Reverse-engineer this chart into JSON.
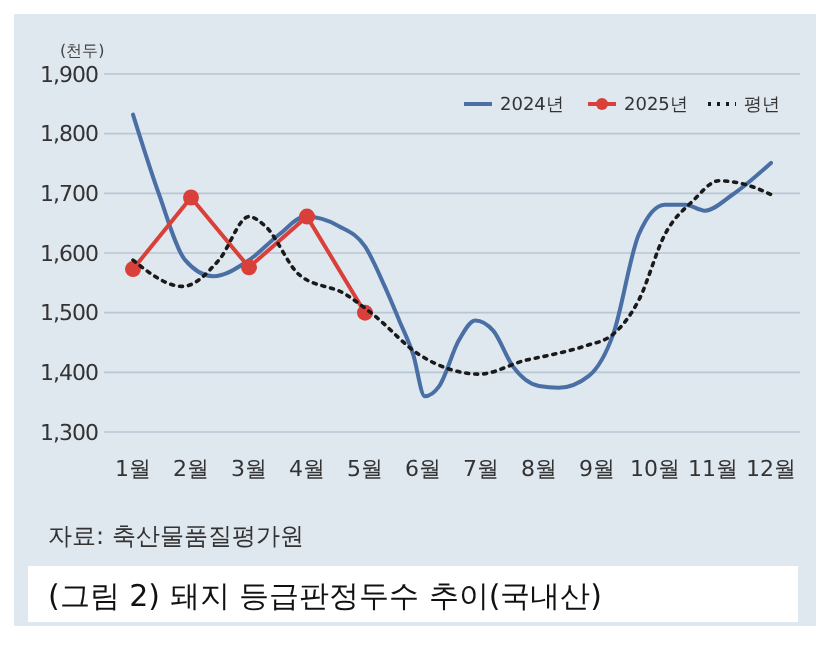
{
  "chart_data": {
    "type": "line",
    "title": "(그림 2) 돼지 등급판정두수 추이(국내산)",
    "ylabel": "(천두)",
    "annotations": [
      "자료: 축산물품질평가원"
    ],
    "xlim": [
      0.5,
      12.5
    ],
    "xticks": [
      {
        "value": 1,
        "label": "1월"
      },
      {
        "value": 2,
        "label": "2월"
      },
      {
        "value": 3,
        "label": "3월"
      },
      {
        "value": 4,
        "label": "4월"
      },
      {
        "value": 5,
        "label": "5월"
      },
      {
        "value": 6,
        "label": "6월"
      },
      {
        "value": 7,
        "label": "7월"
      },
      {
        "value": 8,
        "label": "8월"
      },
      {
        "value": 9,
        "label": "9월"
      },
      {
        "value": 10,
        "label": "10월"
      },
      {
        "value": 11,
        "label": "11월"
      },
      {
        "value": 12,
        "label": "12월"
      }
    ],
    "ylim": [
      1300,
      1900
    ],
    "yticks": [
      {
        "value": 1300,
        "label": "1,300"
      },
      {
        "value": 1400,
        "label": "1,400"
      },
      {
        "value": 1500,
        "label": "1,500"
      },
      {
        "value": 1600,
        "label": "1,600"
      },
      {
        "value": 1700,
        "label": "1,700"
      },
      {
        "value": 1800,
        "label": "1,800"
      },
      {
        "value": 1900,
        "label": "1,900"
      }
    ],
    "grid": "y",
    "legend": "top right",
    "series": [
      {
        "name": "2024년",
        "color": "#4a6fa5",
        "line_style": "solid",
        "marker": "none",
        "x": [
          1,
          1.45,
          1.9,
          2.38,
          3,
          3.52,
          3.97,
          4.55,
          5,
          5.34,
          5.59,
          5.83,
          6.03,
          6.28,
          6.62,
          6.9,
          7.21,
          7.55,
          8,
          8.34,
          8.86,
          9.28,
          9.72,
          10.17,
          10.52,
          10.86,
          11.34,
          12
        ],
        "values": [
          1832,
          1698,
          1588,
          1561,
          1588,
          1631,
          1661,
          1645,
          1611,
          1544,
          1487,
          1430,
          1360,
          1377,
          1454,
          1487,
          1470,
          1410,
          1377,
          1374,
          1394,
          1464,
          1631,
          1681,
          1681,
          1671,
          1698,
          1751
        ]
      },
      {
        "name": "2025년",
        "color": "#d9403a",
        "line_style": "solid",
        "marker": "circle",
        "x": [
          1,
          2,
          3,
          4,
          5
        ],
        "values": [
          1573,
          1693,
          1576,
          1661,
          1500
        ]
      },
      {
        "name": "평년",
        "color": "#1a1a1a",
        "line_style": "dotted",
        "marker": "none",
        "x": [
          1,
          1.86,
          2.48,
          3,
          3.28,
          3.86,
          4.66,
          5.14,
          5.93,
          6.97,
          7.76,
          8.24,
          8.79,
          9.28,
          9.72,
          10.17,
          10.66,
          11.1,
          11.55,
          12
        ],
        "values": [
          1588,
          1544,
          1588,
          1661,
          1645,
          1564,
          1531,
          1497,
          1430,
          1397,
          1420,
          1430,
          1444,
          1464,
          1521,
          1631,
          1688,
          1721,
          1715,
          1698
        ]
      }
    ]
  }
}
